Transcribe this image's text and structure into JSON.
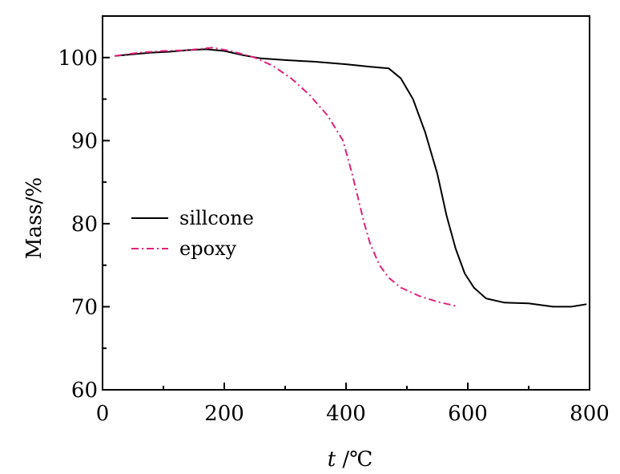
{
  "chart_data": {
    "type": "line",
    "title": "",
    "xlabel_italic": "t",
    "xlabel_unit": " /℃",
    "ylabel": "Mass/%",
    "xlim": [
      0,
      800
    ],
    "ylim": [
      60,
      105
    ],
    "xticks": [
      0,
      200,
      400,
      600,
      800
    ],
    "yticks": [
      60,
      70,
      80,
      90,
      100
    ],
    "x_minor_step": 100,
    "y_minor_step": 5,
    "grid": false,
    "legend_position": "left-center",
    "series": [
      {
        "name": "sillcone",
        "color": "#000000",
        "dash": "solid",
        "points": [
          [
            20,
            100.2
          ],
          [
            50,
            100.4
          ],
          [
            80,
            100.6
          ],
          [
            110,
            100.7
          ],
          [
            140,
            100.9
          ],
          [
            170,
            101.0
          ],
          [
            200,
            100.8
          ],
          [
            230,
            100.3
          ],
          [
            260,
            99.9
          ],
          [
            300,
            99.7
          ],
          [
            350,
            99.5
          ],
          [
            400,
            99.2
          ],
          [
            440,
            98.9
          ],
          [
            470,
            98.7
          ],
          [
            490,
            97.5
          ],
          [
            510,
            95.0
          ],
          [
            530,
            91.0
          ],
          [
            550,
            86.0
          ],
          [
            565,
            81.0
          ],
          [
            580,
            77.0
          ],
          [
            595,
            74.0
          ],
          [
            610,
            72.3
          ],
          [
            630,
            71.0
          ],
          [
            660,
            70.5
          ],
          [
            700,
            70.4
          ],
          [
            740,
            70.0
          ],
          [
            770,
            70.0
          ],
          [
            795,
            70.3
          ]
        ]
      },
      {
        "name": "epoxy",
        "color": "#e0207a",
        "dash": "dashdot",
        "points": [
          [
            20,
            100.2
          ],
          [
            60,
            100.6
          ],
          [
            100,
            100.8
          ],
          [
            140,
            100.9
          ],
          [
            180,
            101.2
          ],
          [
            210,
            100.8
          ],
          [
            250,
            100.0
          ],
          [
            280,
            99.0
          ],
          [
            310,
            97.5
          ],
          [
            340,
            95.5
          ],
          [
            370,
            93.0
          ],
          [
            395,
            90.0
          ],
          [
            410,
            86.0
          ],
          [
            420,
            83.0
          ],
          [
            430,
            80.0
          ],
          [
            440,
            77.5
          ],
          [
            455,
            75.0
          ],
          [
            470,
            73.5
          ],
          [
            490,
            72.3
          ],
          [
            520,
            71.3
          ],
          [
            550,
            70.6
          ],
          [
            580,
            70.1
          ]
        ]
      }
    ]
  }
}
